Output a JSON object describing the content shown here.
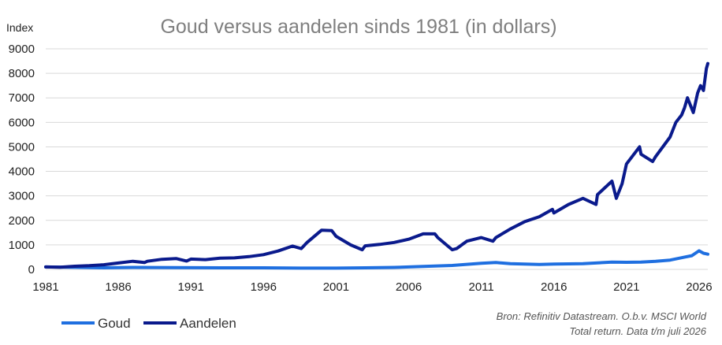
{
  "chart_data": {
    "type": "line",
    "title": "Goud versus aandelen sinds 1981 (in dollars)",
    "ylabel": "Index",
    "xlabel": "",
    "xlim": [
      1981,
      2026.6
    ],
    "ylim": [
      0,
      9000
    ],
    "y_ticks": [
      0,
      1000,
      2000,
      3000,
      4000,
      5000,
      6000,
      7000,
      8000,
      9000
    ],
    "x_ticks": [
      1981,
      1986,
      1991,
      1996,
      2001,
      2006,
      2011,
      2016,
      2021,
      2026
    ],
    "grid": true,
    "legend_position": "bottom-left",
    "series": [
      {
        "name": "Goud",
        "color": "#1f6fe0",
        "x": [
          1981,
          1983,
          1985,
          1987,
          1990,
          1993,
          1996,
          1999,
          2001,
          2003,
          2005,
          2007,
          2009,
          2011,
          2012,
          2013,
          2015,
          2016,
          2018,
          2020,
          2021,
          2022,
          2023,
          2024,
          2025,
          2025.5,
          2026,
          2026.3,
          2026.6
        ],
        "values": [
          100,
          85,
          65,
          80,
          70,
          65,
          65,
          50,
          50,
          65,
          80,
          120,
          160,
          250,
          280,
          230,
          200,
          220,
          230,
          300,
          290,
          300,
          330,
          380,
          500,
          560,
          760,
          660,
          620
        ]
      },
      {
        "name": "Aandelen",
        "color": "#0a1a8c",
        "x": [
          1981,
          1982,
          1983,
          1984,
          1985,
          1986,
          1987,
          1987.8,
          1988,
          1989,
          1990,
          1990.7,
          1991,
          1992,
          1993,
          1994,
          1995,
          1996,
          1997,
          1998,
          1998.6,
          1999,
          2000,
          2000.7,
          2001,
          2002,
          2002.8,
          2003,
          2004,
          2005,
          2006,
          2007,
          2007.8,
          2008,
          2009,
          2009.3,
          2010,
          2011,
          2011.8,
          2012,
          2013,
          2014,
          2015,
          2015.9,
          2016,
          2017,
          2018,
          2018.9,
          2019,
          2020,
          2020.3,
          2020.7,
          2021,
          2021.9,
          2022,
          2022.8,
          2023,
          2024,
          2024.4,
          2024.8,
          2025,
          2025.2,
          2025.6,
          2025.9,
          2026.1,
          2026.3,
          2026.5,
          2026.6
        ],
        "values": [
          100,
          90,
          130,
          150,
          190,
          260,
          330,
          280,
          330,
          410,
          440,
          340,
          420,
          400,
          460,
          470,
          520,
          600,
          750,
          950,
          850,
          1100,
          1600,
          1580,
          1350,
          1000,
          800,
          960,
          1020,
          1100,
          1230,
          1450,
          1450,
          1300,
          800,
          850,
          1150,
          1300,
          1150,
          1300,
          1650,
          1950,
          2150,
          2450,
          2300,
          2650,
          2900,
          2650,
          3050,
          3600,
          2900,
          3500,
          4300,
          5000,
          4700,
          4400,
          4600,
          5400,
          6000,
          6300,
          6600,
          7000,
          6400,
          7200,
          7500,
          7300,
          8200,
          8400
        ]
      }
    ]
  },
  "source": {
    "line1": "Bron: Refinitiv Datastream. O.b.v. MSCI World",
    "line2": "Total return. Data t/m juli 2026"
  }
}
